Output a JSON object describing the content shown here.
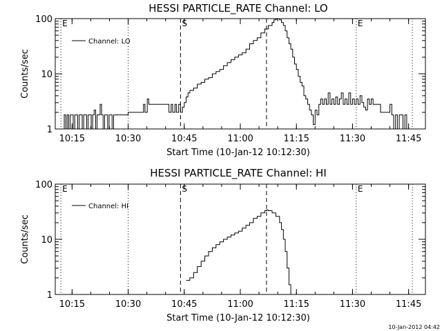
{
  "footer": {
    "timestamp": "10-Jan-2012 04:42"
  },
  "chart_data": [
    {
      "type": "line",
      "title": "HESSI PARTICLE_RATE Channel: LO",
      "xlabel": "Start Time (10-Jan-12 10:12:30)",
      "ylabel": "Counts/sec",
      "yscale": "log",
      "ylim": [
        1,
        100
      ],
      "xlim_minutes": [
        -2,
        97
      ],
      "xtick_labels": [
        "10:15",
        "10:30",
        "10:45",
        "11:00",
        "11:15",
        "11:30",
        "11:45"
      ],
      "ytick_labels": [
        "1",
        "10",
        "100"
      ],
      "legend": {
        "label": "Channel: LO",
        "placement": "top-left"
      },
      "markers": [
        {
          "label": "E",
          "time": "10:12",
          "style": "dotted"
        },
        {
          "label": "",
          "time": "10:30",
          "style": "dotted"
        },
        {
          "label": "S",
          "time": "10:44",
          "style": "dashed"
        },
        {
          "label": "",
          "time": "11:07",
          "style": "dashed"
        },
        {
          "label": "E",
          "time": "11:31",
          "style": "dotted"
        },
        {
          "label": "",
          "time": "11:46",
          "style": "dotted"
        }
      ],
      "series": [
        {
          "name": "Channel: LO",
          "points": [
            [
              0,
              1
            ],
            [
              0.4,
              1.8
            ],
            [
              0.8,
              1
            ],
            [
              1.2,
              1.8
            ],
            [
              1.6,
              1
            ],
            [
              2,
              1.8
            ],
            [
              2.4,
              1.8
            ],
            [
              2.8,
              1
            ],
            [
              3.2,
              1.8
            ],
            [
              3.6,
              1.8
            ],
            [
              4,
              1
            ],
            [
              4.4,
              1.8
            ],
            [
              4.8,
              1.8
            ],
            [
              5.2,
              1
            ],
            [
              5.6,
              1.8
            ],
            [
              6,
              1.8
            ],
            [
              6.4,
              1
            ],
            [
              6.8,
              1.8
            ],
            [
              7.2,
              1.8
            ],
            [
              7.6,
              1
            ],
            [
              8,
              1.8
            ],
            [
              8.4,
              2.2
            ],
            [
              8.8,
              1
            ],
            [
              9.2,
              1.8
            ],
            [
              9.6,
              1.8
            ],
            [
              10,
              2.8
            ],
            [
              10.4,
              1.8
            ],
            [
              10.8,
              1
            ],
            [
              11.2,
              1.8
            ],
            [
              11.6,
              1.8
            ],
            [
              12,
              1
            ],
            [
              12.4,
              1.8
            ],
            [
              12.8,
              1.8
            ],
            [
              13.2,
              1
            ],
            [
              13.6,
              1.8
            ],
            [
              14,
              1.8
            ],
            [
              14.4,
              1.8
            ],
            [
              14.8,
              1.8
            ],
            [
              15.2,
              1.8
            ],
            [
              16,
              1.8
            ],
            [
              17,
              1.8
            ],
            [
              17.5,
              2
            ],
            [
              18,
              2
            ],
            [
              19,
              2
            ],
            [
              20,
              2
            ],
            [
              21,
              2
            ],
            [
              21.6,
              2.8
            ],
            [
              22,
              2
            ],
            [
              22.6,
              3.5
            ],
            [
              23,
              2.8
            ],
            [
              24,
              2.8
            ],
            [
              25,
              2.8
            ],
            [
              26,
              2.8
            ],
            [
              27,
              2.8
            ],
            [
              28,
              2.8
            ],
            [
              28.4,
              2
            ],
            [
              29,
              2.8
            ],
            [
              29.4,
              2
            ],
            [
              30,
              2.8
            ],
            [
              30.4,
              2
            ],
            [
              31,
              2.8
            ],
            [
              31.5,
              2
            ],
            [
              32,
              2.5
            ],
            [
              32.5,
              3
            ],
            [
              33,
              3.8
            ],
            [
              33.5,
              4.5
            ],
            [
              34,
              5
            ],
            [
              35,
              5.5
            ],
            [
              36,
              6.5
            ],
            [
              37,
              7
            ],
            [
              38,
              8
            ],
            [
              39,
              8.5
            ],
            [
              40,
              10
            ],
            [
              41,
              11
            ],
            [
              42,
              12
            ],
            [
              43,
              14
            ],
            [
              44,
              16
            ],
            [
              45,
              18
            ],
            [
              46,
              20
            ],
            [
              47,
              22
            ],
            [
              48,
              24
            ],
            [
              49,
              28
            ],
            [
              50,
              35
            ],
            [
              51,
              40
            ],
            [
              52,
              45
            ],
            [
              53,
              55
            ],
            [
              54,
              65
            ],
            [
              55,
              75
            ],
            [
              56,
              85
            ],
            [
              56.5,
              95
            ],
            [
              57,
              98
            ],
            [
              57.5,
              100
            ],
            [
              58,
              95
            ],
            [
              58.5,
              85
            ],
            [
              59,
              75
            ],
            [
              59.5,
              60
            ],
            [
              60,
              45
            ],
            [
              60.5,
              35
            ],
            [
              61,
              28
            ],
            [
              61.5,
              20
            ],
            [
              62,
              15
            ],
            [
              62.5,
              12
            ],
            [
              63,
              9
            ],
            [
              63.5,
              7
            ],
            [
              64,
              6
            ],
            [
              64.5,
              4
            ],
            [
              65,
              3.5
            ],
            [
              65.5,
              2.8
            ],
            [
              66,
              2.2
            ],
            [
              66.5,
              1.8
            ],
            [
              67,
              1.2
            ],
            [
              67.5,
              2.2
            ],
            [
              68,
              1.8
            ],
            [
              68.5,
              2.8
            ],
            [
              69,
              3.5
            ],
            [
              69.5,
              2.8
            ],
            [
              70,
              3.5
            ],
            [
              70.5,
              2.8
            ],
            [
              71,
              4.5
            ],
            [
              71.5,
              2.8
            ],
            [
              72,
              3.5
            ],
            [
              72.5,
              2.8
            ],
            [
              73,
              3.8
            ],
            [
              73.5,
              2.8
            ],
            [
              74,
              3.5
            ],
            [
              74.5,
              4.5
            ],
            [
              75,
              2.8
            ],
            [
              75.5,
              3.5
            ],
            [
              76,
              2.8
            ],
            [
              76.5,
              4.5
            ],
            [
              77,
              2.8
            ],
            [
              77.5,
              3.5
            ],
            [
              78,
              2.8
            ],
            [
              78.5,
              3.5
            ],
            [
              79,
              2.8
            ],
            [
              79.5,
              4
            ],
            [
              80,
              3
            ],
            [
              80.5,
              2.5
            ],
            [
              81,
              2.2
            ],
            [
              81.5,
              3.5
            ],
            [
              82,
              2.8
            ],
            [
              82.5,
              3.5
            ],
            [
              83,
              2.8
            ],
            [
              83.5,
              2.8
            ],
            [
              84,
              2.8
            ],
            [
              84.5,
              2.8
            ],
            [
              85,
              2
            ],
            [
              85.5,
              2
            ],
            [
              86,
              2
            ],
            [
              86.5,
              2
            ],
            [
              87,
              2
            ],
            [
              87.5,
              2.8
            ],
            [
              88,
              1.8
            ],
            [
              88.5,
              1
            ],
            [
              89,
              1.8
            ],
            [
              89.5,
              1
            ],
            [
              90,
              1.8
            ],
            [
              90.5,
              1.8
            ],
            [
              91,
              1
            ],
            [
              91.5,
              1.8
            ],
            [
              92,
              1
            ]
          ]
        }
      ]
    },
    {
      "type": "line",
      "title": "HESSI PARTICLE_RATE Channel: HI",
      "xlabel": "Start Time (10-Jan-12 10:12:30)",
      "ylabel": "Counts/sec",
      "yscale": "log",
      "ylim": [
        1,
        100
      ],
      "xlim_minutes": [
        -2,
        97
      ],
      "xtick_labels": [
        "10:15",
        "10:30",
        "10:45",
        "11:00",
        "11:15",
        "11:30",
        "11:45"
      ],
      "ytick_labels": [
        "1",
        "10",
        "100"
      ],
      "legend": {
        "label": "Channel: HI",
        "placement": "top-left"
      },
      "markers": [
        {
          "label": "E",
          "time": "10:12",
          "style": "dotted"
        },
        {
          "label": "",
          "time": "10:30",
          "style": "dotted"
        },
        {
          "label": "S",
          "time": "10:44",
          "style": "dashed"
        },
        {
          "label": "",
          "time": "11:07",
          "style": "dashed"
        },
        {
          "label": "E",
          "time": "11:31",
          "style": "dotted"
        },
        {
          "label": "",
          "time": "11:46",
          "style": "dotted"
        }
      ],
      "series": [
        {
          "name": "Channel: HI",
          "points": [
            [
              33,
              1.8
            ],
            [
              34,
              2
            ],
            [
              35,
              2.5
            ],
            [
              36,
              3.2
            ],
            [
              37,
              4
            ],
            [
              38,
              5
            ],
            [
              39,
              6
            ],
            [
              40,
              7
            ],
            [
              41,
              8
            ],
            [
              42,
              9
            ],
            [
              43,
              10
            ],
            [
              44,
              11
            ],
            [
              45,
              12
            ],
            [
              46,
              13
            ],
            [
              47,
              14
            ],
            [
              48,
              16
            ],
            [
              49,
              18
            ],
            [
              50,
              20
            ],
            [
              51,
              24
            ],
            [
              52,
              26
            ],
            [
              53,
              30
            ],
            [
              54,
              33
            ],
            [
              54.5,
              34
            ],
            [
              55,
              33
            ],
            [
              56,
              30
            ],
            [
              57,
              26
            ],
            [
              58,
              20
            ],
            [
              58.5,
              15
            ],
            [
              59,
              10
            ],
            [
              59.5,
              6
            ],
            [
              60,
              3
            ],
            [
              60.5,
              1.5
            ],
            [
              61,
              1
            ]
          ]
        }
      ]
    }
  ]
}
